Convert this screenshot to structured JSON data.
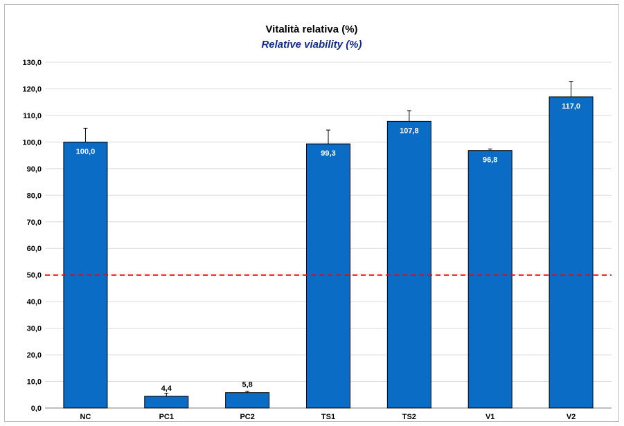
{
  "chart_data": {
    "type": "bar",
    "title": "Vitalità relativa (%)",
    "subtitle": "Relative viability (%)",
    "categories": [
      "NC",
      "PC1",
      "PC2",
      "TS1",
      "TS2",
      "V1",
      "V2"
    ],
    "values": [
      100.0,
      4.4,
      5.8,
      99.3,
      107.8,
      96.8,
      117.0
    ],
    "error": [
      5.2,
      1.2,
      0.5,
      5.2,
      4.0,
      0.6,
      5.8
    ],
    "data_labels": [
      "100,0",
      "4,4",
      "5,8",
      "99,3",
      "107,8",
      "96,8",
      "117,0"
    ],
    "ylim": [
      0,
      130
    ],
    "yticks": [
      0,
      10,
      20,
      30,
      40,
      50,
      60,
      70,
      80,
      90,
      100,
      110,
      120,
      130
    ],
    "ytick_labels": [
      "0,0",
      "10,0",
      "20,0",
      "30,0",
      "40,0",
      "50,0",
      "60,0",
      "70,0",
      "80,0",
      "90,0",
      "100,0",
      "110,0",
      "120,0",
      "130,0"
    ],
    "threshold": 50,
    "grid": true,
    "legend": "none",
    "colors": {
      "bar": "#0a6cc4",
      "bar_edge": "#000000",
      "threshold": "#ff0000",
      "grid": "#d9d9d9",
      "label_inside": "#ffffff",
      "label_outside": "#000000"
    }
  }
}
